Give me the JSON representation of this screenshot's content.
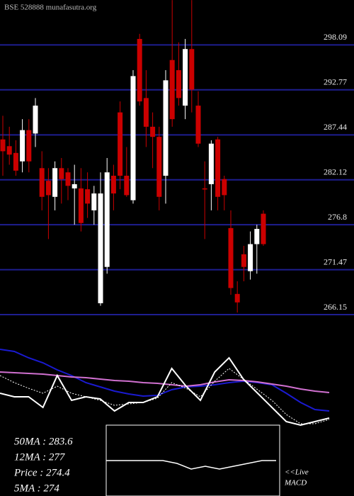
{
  "chart_data": [
    {
      "type": "candlestick",
      "title": "BSE 528888 munafasutra.org",
      "open": [
        286.9,
        286.1,
        285.3,
        284.3,
        288.0,
        287.6,
        283.5,
        282.0,
        280.1,
        283.5,
        283.0,
        281.1,
        281.1,
        281.0,
        278.5,
        267.5,
        271.8,
        282.6,
        290.1,
        282.6,
        279.7,
        298.8,
        291.8,
        288.4,
        287.2,
        282.6,
        296.3,
        295.1,
        290.9,
        297.6,
        290.9,
        281.1,
        281.6,
        286.9,
        282.2,
        276.4,
        268.6,
        273.3,
        271.3,
        274.5,
        278.1
      ],
      "high": [
        289.7,
        288.4,
        286.8,
        289.3,
        289.3,
        291.8,
        285.5,
        283.5,
        284.3,
        284.7,
        283.5,
        283.9,
        283.5,
        283.0,
        281.4,
        283.0,
        284.7,
        283.9,
        291.4,
        286.0,
        295.1,
        299.4,
        295.1,
        290.1,
        288.4,
        295.1,
        303.4,
        298.4,
        298.8,
        303.4,
        292.6,
        284.3,
        286.8,
        287.2,
        282.6,
        278.5,
        270.1,
        274.3,
        276.0,
        276.8,
        278.5
      ],
      "low": [
        282.6,
        283.9,
        282.6,
        283.0,
        283.0,
        286.0,
        278.5,
        275.1,
        278.5,
        279.3,
        279.7,
        276.8,
        276.0,
        277.6,
        276.8,
        267.2,
        271.0,
        278.5,
        281.0,
        280.1,
        279.3,
        290.9,
        286.0,
        283.5,
        278.5,
        279.3,
        288.4,
        290.9,
        289.3,
        290.1,
        286.0,
        275.1,
        278.5,
        278.5,
        278.5,
        268.5,
        266.4,
        270.1,
        270.3,
        271.0,
        274.3
      ],
      "close": [
        285.5,
        285.1,
        283.2,
        288.0,
        284.3,
        290.9,
        280.1,
        280.3,
        283.5,
        282.2,
        281.4,
        281.6,
        277.0,
        279.3,
        280.5,
        280.5,
        283.0,
        280.5,
        282.6,
        280.3,
        294.4,
        291.4,
        288.4,
        287.2,
        280.1,
        293.9,
        289.3,
        291.8,
        297.6,
        292.8,
        286.4,
        281.0,
        286.4,
        280.1,
        280.3,
        269.3,
        267.6,
        271.8,
        274.5,
        276.3,
        274.5
      ],
      "up_color": "#ffffff",
      "down_color": "#cc0000",
      "ylim": [
        265.65,
        303.41
      ],
      "yticks": [
        266.15,
        271.47,
        276.8,
        282.12,
        287.44,
        292.77,
        298.09
      ],
      "grid": true,
      "grid_color": "#1e1e90"
    },
    {
      "type": "line",
      "annotations": [
        "50MA : 283.6",
        "12MA : 277",
        "Price  : 274.4",
        "5MA : 274"
      ],
      "ylim": [
        0,
        140
      ],
      "series": [
        {
          "color": "#1a1ad0",
          "values": [
            127,
            124,
            115,
            108,
            98,
            90,
            80,
            74,
            68,
            64,
            61,
            62,
            70,
            74,
            75,
            77,
            80,
            82,
            80,
            77,
            65,
            52,
            42,
            40
          ]
        },
        {
          "color": "#d070d0",
          "values": [
            95,
            94,
            93,
            92,
            90,
            88,
            87,
            85,
            83,
            82,
            80,
            79,
            77,
            75,
            77,
            81,
            84,
            83,
            81,
            78,
            75,
            71,
            68,
            66
          ]
        },
        {
          "color": "#ffffff",
          "values": [
            65,
            60,
            60,
            45,
            90,
            55,
            60,
            57,
            40,
            52,
            52,
            60,
            100,
            75,
            55,
            95,
            115,
            85,
            65,
            45,
            25,
            20,
            25,
            30
          ]
        },
        {
          "color": "#ffffff",
          "dash": true,
          "values": [
            90,
            80,
            72,
            65,
            75,
            65,
            60,
            55,
            48,
            50,
            52,
            58,
            80,
            72,
            60,
            82,
            100,
            85,
            70,
            55,
            35,
            22,
            22,
            28
          ]
        }
      ]
    },
    {
      "type": "macd",
      "title": "MACD",
      "annotations": [
        "<<Live"
      ],
      "ylim": [
        -10,
        10
      ],
      "color": "#ffffff",
      "values": [
        0,
        0,
        0,
        0,
        0,
        -1,
        -3,
        -2,
        -3,
        -2,
        -1,
        0,
        0
      ]
    }
  ]
}
